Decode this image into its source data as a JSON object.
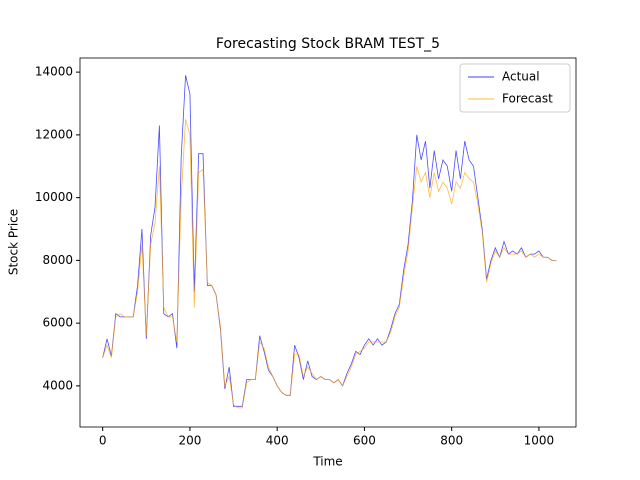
{
  "chart_data": {
    "type": "line",
    "title": "Forecasting Stock BRAM TEST_5",
    "x_label": "Time",
    "y_label": "Stock Price",
    "x": [
      0,
      10,
      20,
      30,
      40,
      50,
      60,
      70,
      80,
      90,
      100,
      110,
      120,
      130,
      140,
      150,
      160,
      170,
      180,
      190,
      200,
      210,
      220,
      230,
      240,
      250,
      260,
      270,
      280,
      290,
      300,
      310,
      320,
      330,
      340,
      350,
      360,
      370,
      380,
      390,
      400,
      410,
      420,
      430,
      440,
      450,
      460,
      470,
      480,
      490,
      500,
      510,
      520,
      530,
      540,
      550,
      560,
      570,
      580,
      590,
      600,
      610,
      620,
      630,
      640,
      650,
      660,
      670,
      680,
      690,
      700,
      710,
      720,
      730,
      740,
      750,
      760,
      770,
      780,
      790,
      800,
      810,
      820,
      830,
      840,
      850,
      860,
      870,
      880,
      890,
      900,
      910,
      920,
      930,
      940,
      950,
      960,
      970,
      980,
      990,
      1000,
      1010,
      1020,
      1030,
      1040
    ],
    "series": [
      {
        "name": "Actual",
        "color": "#0000ff",
        "values": [
          4900,
          5500,
          4950,
          6300,
          6200,
          6200,
          6200,
          6200,
          7200,
          9000,
          5500,
          8800,
          9700,
          12300,
          6300,
          6200,
          6300,
          5200,
          11300,
          13900,
          13300,
          7000,
          11400,
          11400,
          7200,
          7200,
          6900,
          5800,
          3900,
          4600,
          3350,
          3350,
          3350,
          4200,
          4200,
          4200,
          5600,
          5100,
          4500,
          4300,
          4000,
          3800,
          3700,
          3700,
          5300,
          4900,
          4200,
          4800,
          4300,
          4200,
          4300,
          4200,
          4200,
          4100,
          4200,
          4000,
          4400,
          4700,
          5100,
          5000,
          5300,
          5500,
          5300,
          5500,
          5300,
          5400,
          5800,
          6300,
          6600,
          7700,
          8500,
          9900,
          12000,
          11200,
          11800,
          10300,
          11500,
          10600,
          11200,
          11000,
          10200,
          11500,
          10600,
          11800,
          11200,
          11000,
          10000,
          9000,
          7400,
          8000,
          8400,
          8100,
          8600,
          8200,
          8300,
          8200,
          8400,
          8100,
          8200,
          8200,
          8300,
          8100,
          8100,
          8000,
          8000
        ]
      },
      {
        "name": "Forecast",
        "color": "#ffa500",
        "values": [
          4900,
          5300,
          4900,
          6200,
          6300,
          6200,
          6200,
          6200,
          7000,
          8500,
          5600,
          8500,
          9200,
          11000,
          6500,
          6200,
          6200,
          5400,
          10000,
          12500,
          12000,
          6500,
          10800,
          10900,
          7300,
          7200,
          6900,
          5900,
          4000,
          4300,
          3400,
          3300,
          3300,
          4100,
          4200,
          4200,
          5400,
          5200,
          4600,
          4300,
          4000,
          3800,
          3700,
          3700,
          5000,
          5000,
          4300,
          4600,
          4400,
          4200,
          4300,
          4200,
          4200,
          4100,
          4200,
          4000,
          4300,
          4600,
          5000,
          5100,
          5200,
          5400,
          5400,
          5400,
          5400,
          5400,
          5700,
          6200,
          6500,
          7500,
          8300,
          9700,
          11000,
          10500,
          10800,
          10000,
          10800,
          10200,
          10500,
          10300,
          9800,
          10500,
          10300,
          10800,
          10600,
          10500,
          9800,
          8900,
          7300,
          7900,
          8300,
          8100,
          8400,
          8200,
          8200,
          8200,
          8300,
          8100,
          8200,
          8100,
          8200,
          8100,
          8100,
          8000,
          8000
        ]
      }
    ],
    "xlim": [
      -52,
      1085
    ],
    "ylim": [
      2690,
      14450
    ],
    "xticks": [
      0,
      200,
      400,
      600,
      800,
      1000
    ],
    "yticks": [
      4000,
      6000,
      8000,
      10000,
      12000,
      14000
    ],
    "legend": "upper right"
  }
}
